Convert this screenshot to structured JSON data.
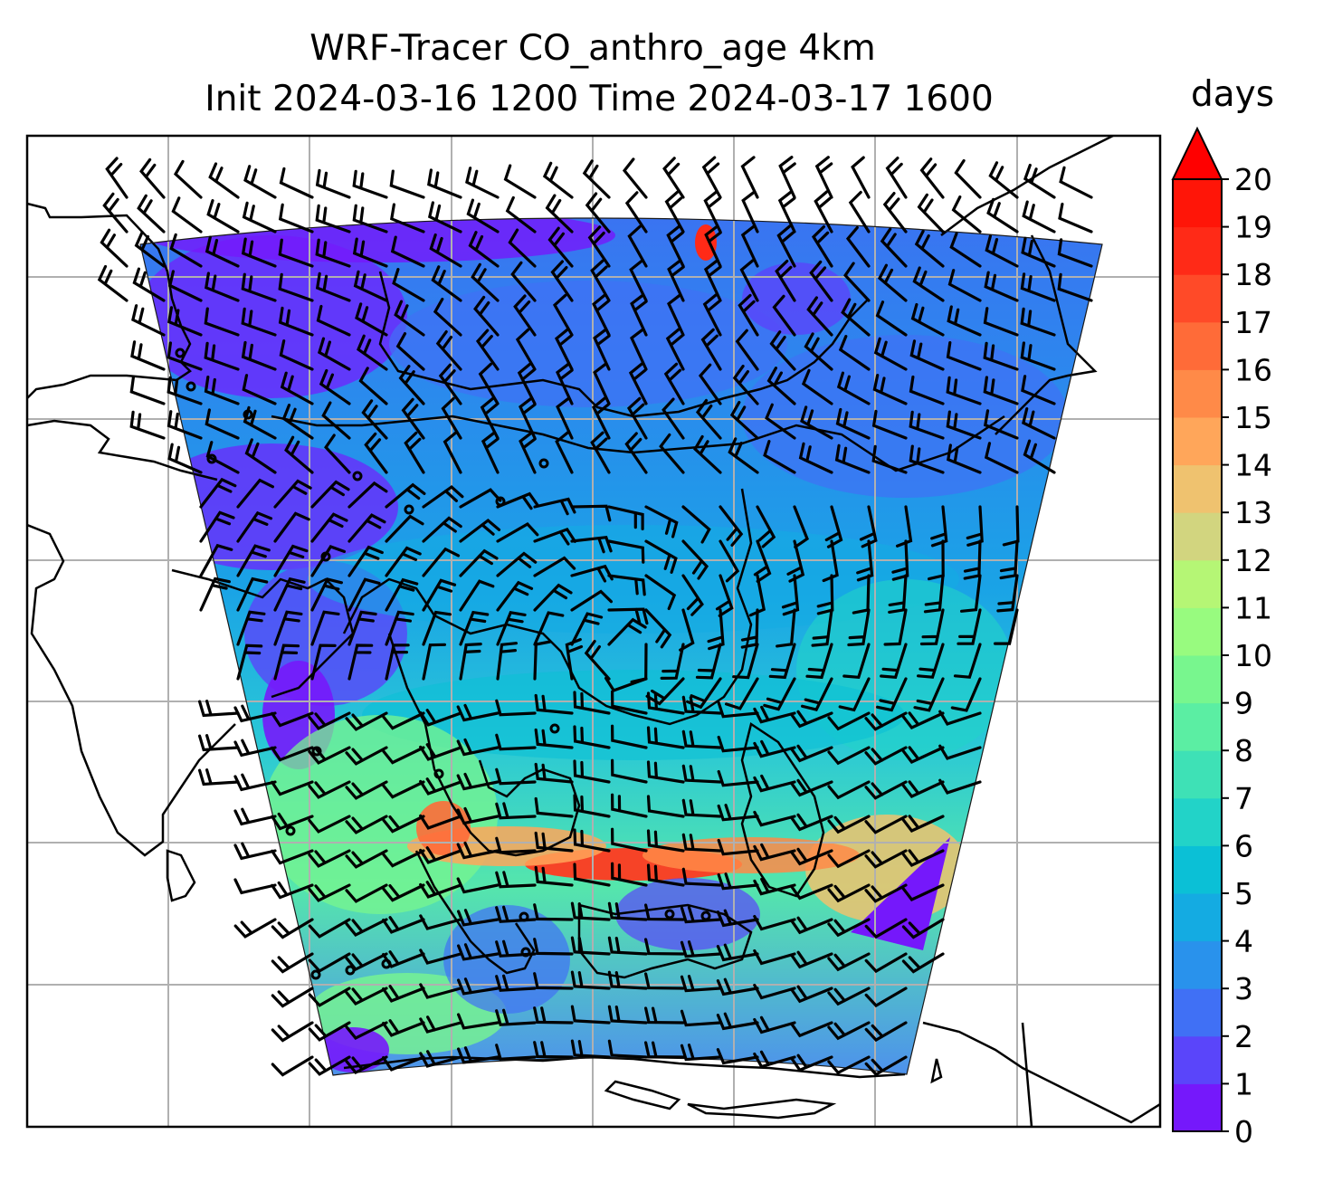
{
  "figure": {
    "title_line1": "WRF-Tracer CO_anthro_age 4km",
    "title_line2": "Init 2024-03-16 1200 Time 2024-03-17 1600"
  },
  "map": {
    "gridlines": true,
    "gridline_color": "#b0b0b0",
    "coastline_color": "#000000",
    "wind_barb_color": "#000000",
    "domain_outline": "curved trapezoid (Lambert projection) over Southeast Asia",
    "features": [
      "coastlines",
      "wind barbs",
      "calm circles",
      "lat/lon gridlines"
    ]
  },
  "colorbar": {
    "label": "days",
    "min": 0,
    "max": 20,
    "extend": "max",
    "ticks": [
      "0",
      "1",
      "2",
      "3",
      "4",
      "5",
      "6",
      "7",
      "8",
      "9",
      "10",
      "11",
      "12",
      "13",
      "14",
      "15",
      "16",
      "17",
      "18",
      "19",
      "20"
    ],
    "colors": [
      "#7518fb",
      "#5a45fa",
      "#4070f5",
      "#2992ec",
      "#14abe2",
      "#0bc0d6",
      "#22d3c8",
      "#3ee1b6",
      "#5beea3",
      "#78f68e",
      "#98fb7f",
      "#b5f675",
      "#d2d57f",
      "#efc26f",
      "#ffa65a",
      "#ff8a48",
      "#ff6b38",
      "#ff4a28",
      "#ff2a17",
      "#ff1508"
    ],
    "extend_color": "#ff0000"
  }
}
